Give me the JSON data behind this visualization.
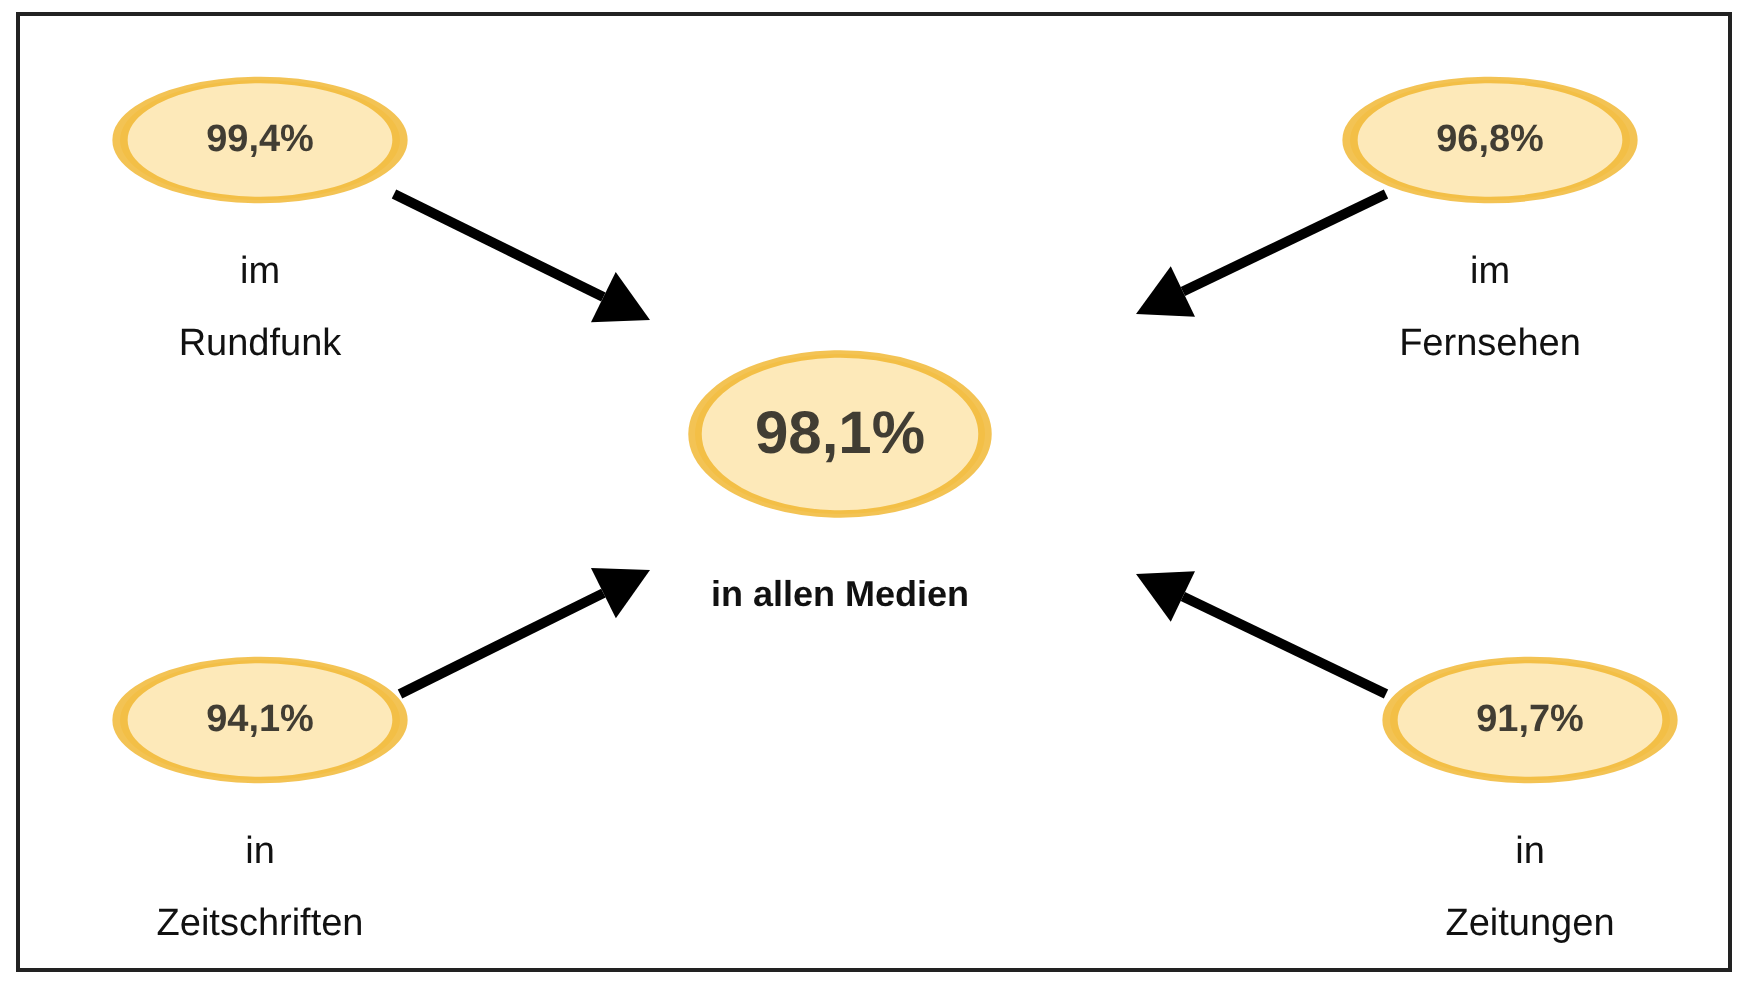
{
  "chart_data": {
    "type": "other",
    "categories": [
      "im Rundfunk",
      "im Fernsehen",
      "in Zeitschriften",
      "in Zeitungen",
      "in allen Medien"
    ],
    "values": [
      99.4,
      96.8,
      94.1,
      91.7,
      98.1
    ],
    "value_labels": [
      "99,4%",
      "96,8%",
      "94,1%",
      "91,7%",
      "98,1%"
    ],
    "colors": [
      "#fde3a7",
      "#fde3a7",
      "#fde3a7",
      "#fde3a7",
      "#fde3a7"
    ]
  }
}
